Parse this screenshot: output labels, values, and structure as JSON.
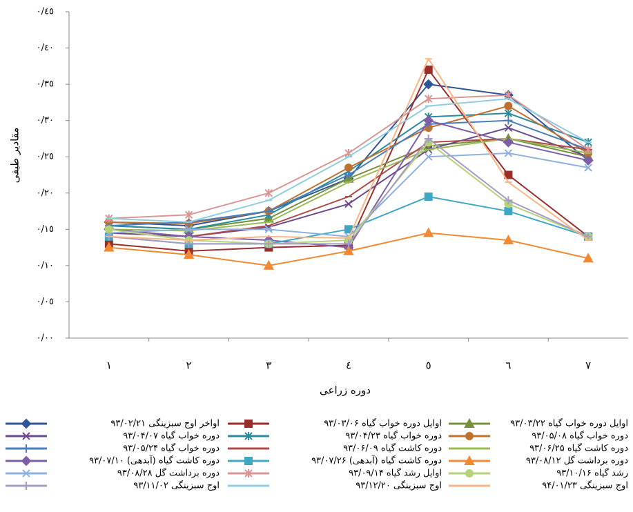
{
  "chart_data": {
    "type": "line",
    "x_label": "دوره زراعی",
    "y_label": "مقادیر طیفی",
    "categories": [
      "١",
      "٢",
      "٣",
      "٤",
      "٥",
      "٦",
      "٧"
    ],
    "ylim": [
      0,
      0.45
    ],
    "yticks": [
      {
        "value": 0,
        "label": "٠/٠٠"
      },
      {
        "value": 0.05,
        "label": "٠/٠٥"
      },
      {
        "value": 0.1,
        "label": "٠/١٠"
      },
      {
        "value": 0.15,
        "label": "٠/١٥"
      },
      {
        "value": 0.2,
        "label": "٠/٢٠"
      },
      {
        "value": 0.25,
        "label": "٠/٢٥"
      },
      {
        "value": 0.3,
        "label": "٠/٣٠"
      },
      {
        "value": 0.35,
        "label": "٠/٣٥"
      },
      {
        "value": 0.4,
        "label": "٠/٤٠"
      },
      {
        "value": 0.45,
        "label": "٠/٤٥"
      }
    ],
    "grid": false,
    "series": [
      {
        "name": "۹۳/۰۲/۲۱ اواخر اوج سبزینگی",
        "color": "#2e5597",
        "marker": "diamond",
        "values": [
          0.16,
          0.155,
          0.175,
          0.22,
          0.35,
          0.335,
          0.245
        ]
      },
      {
        "name": "۹۳/۰۳/۰۶ اوایل دوره خواب گیاه",
        "color": "#9b2d2a",
        "marker": "square",
        "values": [
          0.13,
          0.12,
          0.125,
          0.128,
          0.37,
          0.225,
          0.14
        ]
      },
      {
        "name": "۹۳/۰۳/۲۲ اوایل دوره خواب گیاه",
        "color": "#76923c",
        "marker": "triangle",
        "values": [
          0.155,
          0.15,
          0.165,
          0.22,
          0.265,
          0.275,
          0.25
        ]
      },
      {
        "name": "۹۳/۰۴/۰۷ دوره خواب گیاه",
        "color": "#6a4a8e",
        "marker": "x",
        "values": [
          0.145,
          0.14,
          0.153,
          0.185,
          0.26,
          0.29,
          0.25
        ]
      },
      {
        "name": "۹۳/۰۴/۲۳ دوره خواب گیاه",
        "color": "#2b8a9e",
        "marker": "star",
        "values": [
          0.155,
          0.15,
          0.17,
          0.23,
          0.305,
          0.31,
          0.27
        ]
      },
      {
        "name": "۹۳/۰۵/۰۸ دوره خواب گیاه",
        "color": "#c0712e",
        "marker": "circle",
        "values": [
          0.16,
          0.158,
          0.175,
          0.235,
          0.29,
          0.32,
          0.255
        ]
      },
      {
        "name": "۹۳/۰۵/۲۴ دوره خواب گیاه",
        "color": "#4a7ebb",
        "marker": "plus",
        "values": [
          0.155,
          0.16,
          0.175,
          0.225,
          0.295,
          0.3,
          0.26
        ]
      },
      {
        "name": "۹۳/۰۶/۰۹ دوره کاشت گیاه",
        "color": "#b04a47",
        "marker": "dash",
        "values": [
          0.15,
          0.14,
          0.155,
          0.195,
          0.27,
          0.275,
          0.26
        ]
      },
      {
        "name": "۹۳/۰۶/۲۵ دوره کاشت گیاه",
        "color": "#98b954",
        "marker": "dash",
        "values": [
          0.15,
          0.148,
          0.16,
          0.215,
          0.26,
          0.275,
          0.255
        ]
      },
      {
        "name": "۹۳/۰۷/۱۰ دوره کاشت گیاه (آبدهی)",
        "color": "#7e5ea6",
        "marker": "diamond",
        "values": [
          0.15,
          0.14,
          0.135,
          0.125,
          0.3,
          0.27,
          0.245
        ]
      },
      {
        "name": "۹۳/۰۷/۲۶ دوره کاشت گیاه (آبدهی)",
        "color": "#3fa7c4",
        "marker": "square",
        "values": [
          0.14,
          0.13,
          0.13,
          0.15,
          0.195,
          0.175,
          0.14
        ]
      },
      {
        "name": "۹۳/۰۸/۱۲ دوره برداشت گل",
        "color": "#f28a34",
        "marker": "triangle",
        "values": [
          0.125,
          0.115,
          0.1,
          0.12,
          0.145,
          0.135,
          0.11
        ]
      },
      {
        "name": "۹۳/۰۸/۲۸ دوره برداشت گل",
        "color": "#8db0e0",
        "marker": "x",
        "values": [
          0.145,
          0.15,
          0.15,
          0.14,
          0.25,
          0.255,
          0.235
        ]
      },
      {
        "name": "۹۳/۰۹/۱۴ اوایل رشد گیاه",
        "color": "#d99594",
        "marker": "star",
        "values": [
          0.165,
          0.17,
          0.2,
          0.255,
          0.33,
          0.335,
          0.26
        ]
      },
      {
        "name": "۹۳/۱۰/۱۶ رشد گیاه",
        "color": "#b5d27a",
        "marker": "circle",
        "values": [
          0.15,
          0.135,
          0.13,
          0.135,
          0.27,
          0.185,
          0.14
        ]
      },
      {
        "name": "۹۳/۱۱/۰۲ اوج سبزینگی",
        "color": "#a59bc5",
        "marker": "plus",
        "values": [
          0.14,
          0.13,
          0.13,
          0.13,
          0.275,
          0.19,
          0.14
        ]
      },
      {
        "name": "۹۳/۱۲/۲۰ اوج سبزینگی",
        "color": "#8fcde0",
        "marker": "dash",
        "values": [
          0.165,
          0.16,
          0.19,
          0.25,
          0.32,
          0.33,
          0.27
        ]
      },
      {
        "name": "۹۴/۰۱/۲۳ اوج سبزینگی",
        "color": "#f9b584",
        "marker": "dash",
        "values": [
          0.14,
          0.135,
          0.14,
          0.138,
          0.385,
          0.215,
          0.135
        ]
      }
    ]
  }
}
